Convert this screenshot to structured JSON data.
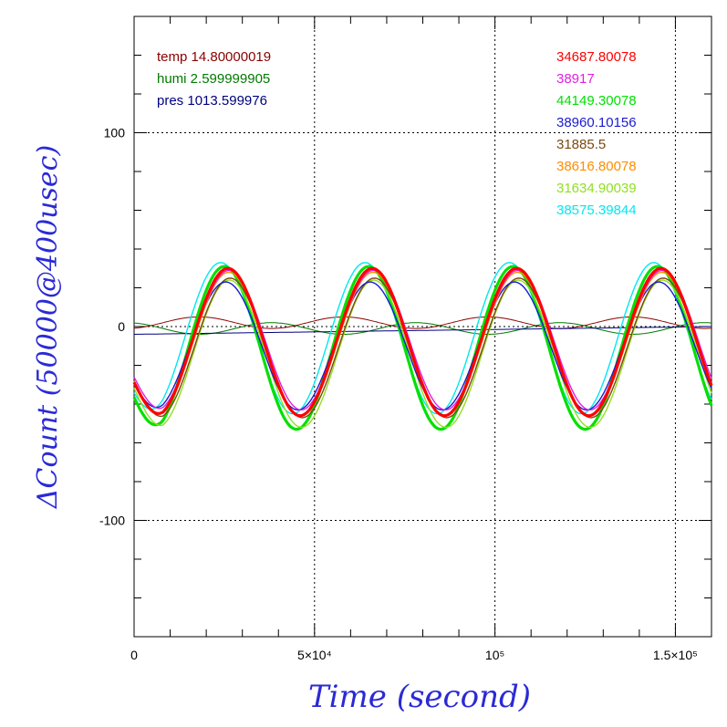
{
  "chart_data": {
    "type": "line",
    "xlabel": "Time (second)",
    "ylabel": "ΔCount (50000@400usec)",
    "xlim": [
      0,
      160000
    ],
    "ylim": [
      -160,
      160
    ],
    "grid": true,
    "x_ticks": [
      {
        "value": 0,
        "label": "0"
      },
      {
        "value": 50000,
        "label": "5×10⁴"
      },
      {
        "value": 100000,
        "label": "10⁵"
      },
      {
        "value": 150000,
        "label": "1.5×10⁵"
      }
    ],
    "y_ticks": [
      {
        "value": -100,
        "label": "-100"
      },
      {
        "value": 0,
        "label": "0"
      },
      {
        "value": 100,
        "label": "100"
      }
    ],
    "legend_left": [
      {
        "text": "temp 14.80000019",
        "color": "#8b0000"
      },
      {
        "text": "humi 2.599999905",
        "color": "#007a00"
      },
      {
        "text": "pres 1013.599976",
        "color": "#000080"
      }
    ],
    "legend_right": [
      {
        "text": "34687.80078",
        "color": "#ff0000"
      },
      {
        "text": "38917",
        "color": "#e020e0"
      },
      {
        "text": "44149.30078",
        "color": "#00e000"
      },
      {
        "text": "38960.10156",
        "color": "#1a1ad0"
      },
      {
        "text": "31885.5",
        "color": "#7a4a10"
      },
      {
        "text": "38616.80078",
        "color": "#ff8c00"
      },
      {
        "text": "31634.90039",
        "color": "#90e020"
      },
      {
        "text": "38575.39844",
        "color": "#00e8f0"
      }
    ],
    "oscillation": {
      "period": 40000,
      "peaks_x": [
        26000,
        66000,
        106000,
        146000
      ],
      "troughs_x": [
        6000,
        46000,
        86000,
        126000
      ],
      "series": [
        {
          "name": "34687.80078",
          "color": "#ff0000",
          "amp": 38,
          "offset": -8,
          "phase": 0
        },
        {
          "name": "38917",
          "color": "#e020e0",
          "amp": 36,
          "offset": -7,
          "phase": 300
        },
        {
          "name": "44149.30078",
          "color": "#00e000",
          "amp": 42,
          "offset": -11,
          "phase": -1000
        },
        {
          "name": "38960.10156",
          "color": "#1a1ad0",
          "amp": 33,
          "offset": -10,
          "phase": -600
        },
        {
          "name": "31885.5",
          "color": "#7a4a10",
          "amp": 36,
          "offset": -11,
          "phase": 600
        },
        {
          "name": "38616.80078",
          "color": "#ff8c00",
          "amp": 37,
          "offset": -9,
          "phase": 200
        },
        {
          "name": "31634.90039",
          "color": "#90e020",
          "amp": 38,
          "offset": -14,
          "phase": 400
        },
        {
          "name": "38575.39844",
          "color": "#00e8f0",
          "amp": 39,
          "offset": -6,
          "phase": -2000
        }
      ]
    },
    "environment": [
      {
        "name": "temp 14.80000019",
        "color": "#8b0000",
        "amp": 3,
        "offset": 2,
        "phase": 8000
      },
      {
        "name": "humi 2.599999905",
        "color": "#007a00",
        "amp": 3,
        "offset": -1,
        "phase": -12000
      },
      {
        "name": "pres 1013.599976",
        "color": "#000080",
        "amp": 0,
        "offset": -4,
        "phase": 0
      }
    ]
  }
}
